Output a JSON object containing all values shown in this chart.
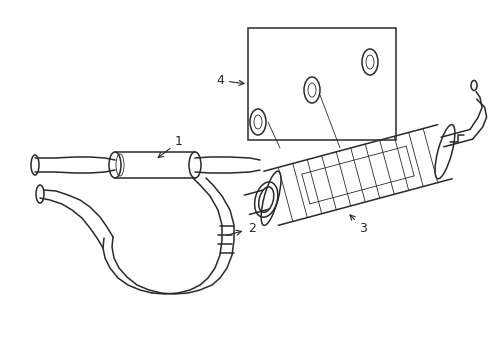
{
  "bg_color": "#ffffff",
  "line_color": "#2a2a2a",
  "lw": 1.1,
  "lw_thin": 0.6,
  "label_fontsize": 9,
  "figsize": [
    4.89,
    3.6
  ],
  "dpi": 100
}
